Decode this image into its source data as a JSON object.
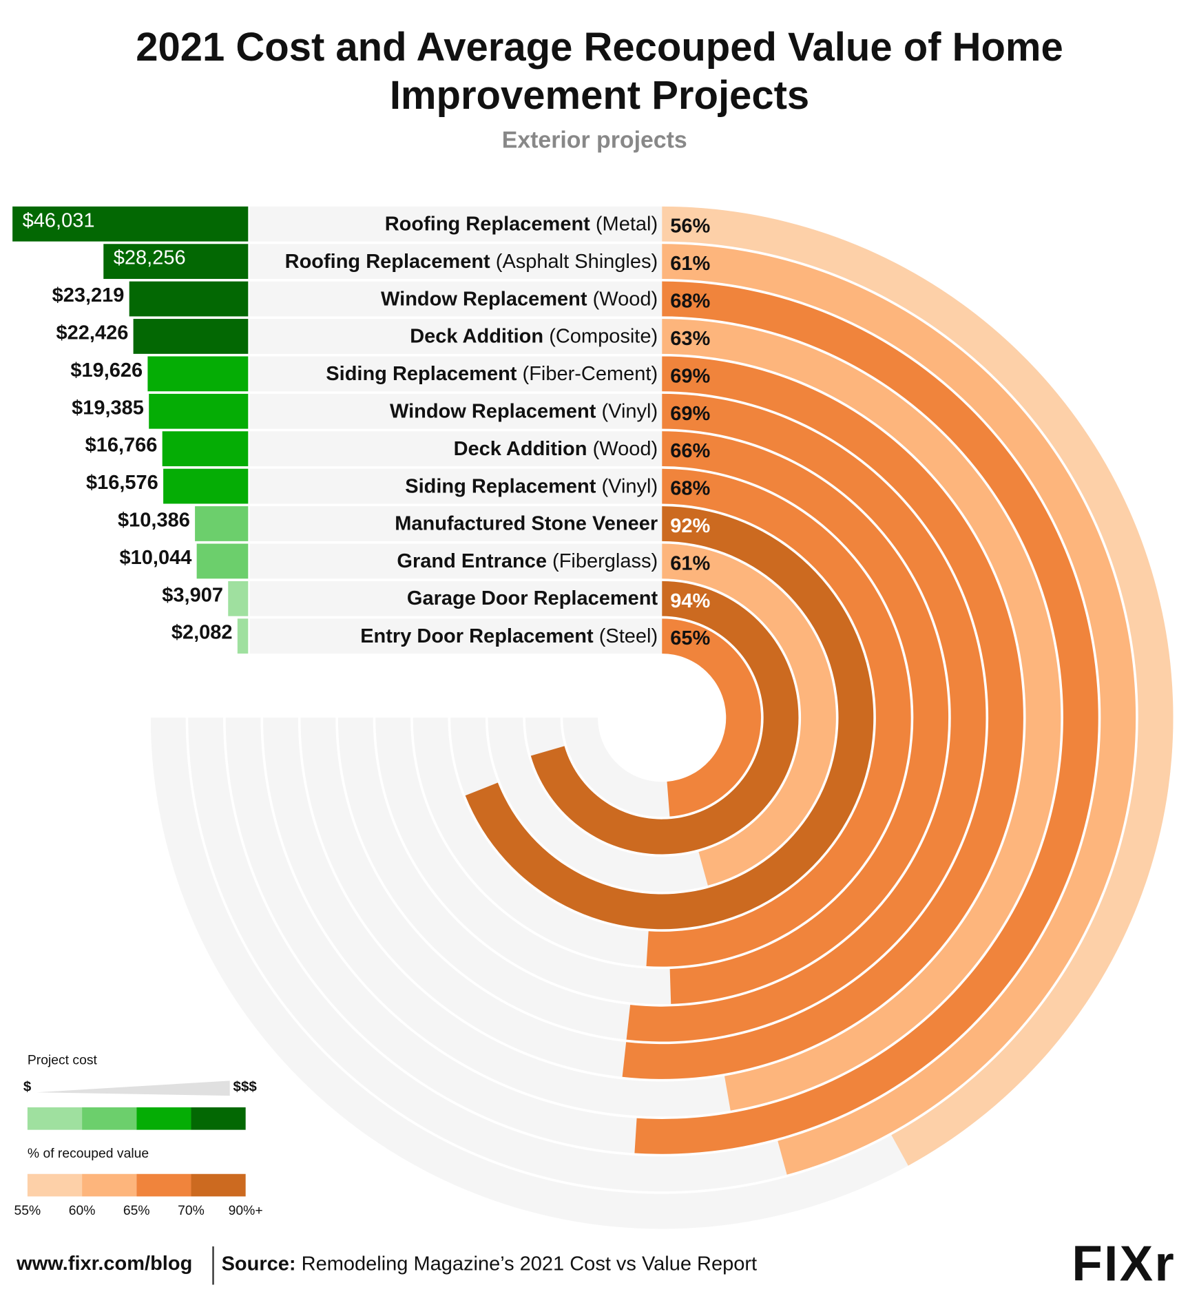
{
  "chart_data": {
    "type": "radial_bar",
    "title": [
      "2021 Cost and Average Recouped Value of Home",
      "Improvement Projects"
    ],
    "subtitle": "Exterior projects",
    "categories": [
      "Roofing Replacement (Metal)",
      "Roofing Replacement (Asphalt Shingles)",
      "Window Replacement (Wood)",
      "Deck Addition (Composite)",
      "Siding Replacement (Fiber-Cement)",
      "Window Replacement (Vinyl)",
      "Deck Addition (Wood)",
      "Siding Replacement (Vinyl)",
      "Manufactured Stone Veneer",
      "Grand Entrance (Fiberglass)",
      "Garage Door Replacement",
      "Entry Door Replacement (Steel)"
    ],
    "series": [
      {
        "name": "Project cost",
        "values": [
          46031,
          28256,
          23219,
          22426,
          19626,
          19385,
          16766,
          16576,
          10386,
          10044,
          3907,
          2082
        ],
        "value_labels": [
          "$46,031",
          "$28,256",
          "$23,219",
          "$22,426",
          "$19,626",
          "$19,385",
          "$16,766",
          "$16,576",
          "$10,386",
          "$10,044",
          "$3,907",
          "$2,082"
        ],
        "colors": [
          "#036803",
          "#036803",
          "#036803",
          "#036803",
          "#05ad05",
          "#05ad05",
          "#05ad05",
          "#05ad05",
          "#6ccf6c",
          "#6ccf6c",
          "#9fe09f",
          "#9fe09f"
        ]
      },
      {
        "name": "% of recouped value",
        "values": [
          56,
          61,
          68,
          63,
          69,
          69,
          66,
          68,
          92,
          61,
          94,
          65
        ],
        "value_labels": [
          "56%",
          "61%",
          "68%",
          "63%",
          "69%",
          "69%",
          "66%",
          "68%",
          "92%",
          "61%",
          "94%",
          "65%"
        ]
      }
    ],
    "ylim": [
      0,
      100
    ],
    "cost_legend": {
      "low": "$",
      "high": "$$$",
      "colors": [
        "#9fe09f",
        "#6ccf6c",
        "#05ad05",
        "#036803"
      ]
    },
    "value_legend": {
      "colors": [
        "#fdd0a8",
        "#fdb57c",
        "#f0843c",
        "#cc6a20"
      ],
      "ticks": [
        {
          "value": 55,
          "label": "55%"
        },
        {
          "value": 60,
          "label": "60%"
        },
        {
          "value": 65,
          "label": "65%"
        },
        {
          "value": 70,
          "label": "70%"
        },
        {
          "value": 90,
          "label": "90%+"
        }
      ]
    },
    "footer": {
      "site": "www.fixr.com/blog",
      "source_label": "Source:",
      "source": "Remodeling Magazine’s 2021 Cost vs Value Report",
      "logo": "FIXr"
    }
  }
}
